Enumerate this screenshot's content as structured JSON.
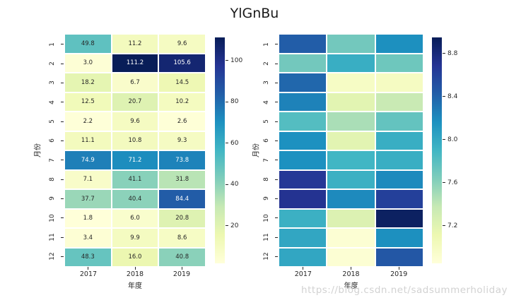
{
  "title": "YlGnBu",
  "watermark": "https://blog.csdn.net/sadsummerholiday",
  "colormap": {
    "name": "YlGnBu",
    "stops": [
      "#ffffd9",
      "#edf8b1",
      "#c7e9b4",
      "#7fcdbb",
      "#41b6c4",
      "#1d91c0",
      "#225ea8",
      "#253494",
      "#081d58"
    ]
  },
  "text_colors": {
    "dark": "#262626",
    "light": "#ffffff"
  },
  "chart_data": [
    {
      "type": "heatmap",
      "name": "annotated-heatmap",
      "xlabel": "年度",
      "ylabel": "月份",
      "x": [
        "2017",
        "2018",
        "2019"
      ],
      "y": [
        "1",
        "2",
        "3",
        "4",
        "5",
        "6",
        "7",
        "8",
        "9",
        "10",
        "11",
        "12"
      ],
      "values": [
        [
          49.8,
          11.2,
          9.6
        ],
        [
          3.0,
          111.2,
          105.6
        ],
        [
          18.2,
          6.7,
          14.5
        ],
        [
          12.5,
          20.7,
          10.2
        ],
        [
          2.2,
          9.6,
          2.6
        ],
        [
          11.1,
          10.8,
          9.3
        ],
        [
          74.9,
          71.2,
          73.8
        ],
        [
          7.1,
          41.1,
          31.8
        ],
        [
          37.7,
          40.4,
          84.4
        ],
        [
          1.8,
          6.0,
          20.8
        ],
        [
          3.4,
          9.9,
          8.6
        ],
        [
          48.3,
          16.0,
          40.8
        ]
      ],
      "vmin": 1.8,
      "vmax": 111.2,
      "annotated": true,
      "colorbar_ticks": [
        "20",
        "40",
        "60",
        "80",
        "100"
      ],
      "grid": true,
      "legend_position": "right-colorbar"
    },
    {
      "type": "heatmap",
      "name": "plain-heatmap",
      "xlabel": "年度",
      "ylabel": "月份",
      "x": [
        "2017",
        "2018",
        "2019"
      ],
      "y": [
        "1",
        "2",
        "3",
        "4",
        "5",
        "6",
        "7",
        "8",
        "9",
        "10",
        "11",
        "12"
      ],
      "values": [
        [
          8.43,
          7.69,
          8.17
        ],
        [
          7.69,
          7.96,
          7.71
        ],
        [
          8.38,
          6.98,
          7.0
        ],
        [
          8.24,
          7.19,
          7.36
        ],
        [
          7.82,
          7.48,
          7.75
        ],
        [
          8.16,
          7.19,
          7.96
        ],
        [
          8.16,
          7.9,
          7.96
        ],
        [
          8.66,
          7.94,
          8.2
        ],
        [
          8.7,
          8.2,
          8.61
        ],
        [
          7.94,
          7.23,
          8.91
        ],
        [
          8.01,
          6.89,
          8.17
        ],
        [
          8.01,
          6.89,
          8.47
        ]
      ],
      "vmin": 6.85,
      "vmax": 8.95,
      "annotated": false,
      "colorbar_ticks": [
        "7.2",
        "7.6",
        "8.0",
        "8.4",
        "8.8"
      ],
      "grid": true,
      "legend_position": "right-colorbar"
    }
  ]
}
